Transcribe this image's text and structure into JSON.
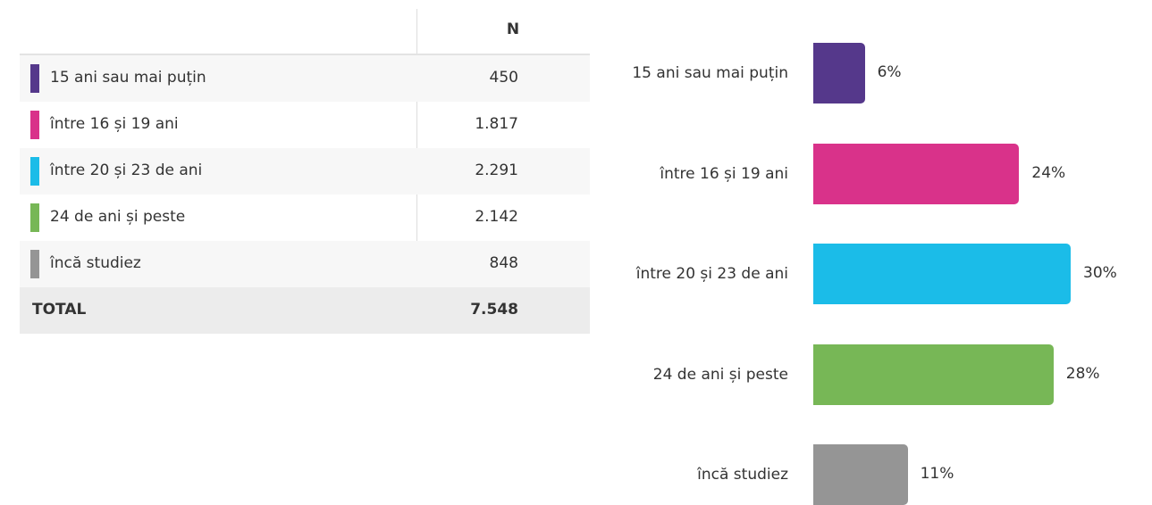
{
  "table": {
    "header": "N",
    "rows": [
      {
        "label": "15 ani sau mai puțin",
        "value": "450",
        "color": "#55388b"
      },
      {
        "label": "între 16 și 19 ani",
        "value": "1.817",
        "color": "#d9328a"
      },
      {
        "label": "între 20 și 23 de ani",
        "value": "2.291",
        "color": "#1bbce8"
      },
      {
        "label": "24 de ani și peste",
        "value": "2.142",
        "color": "#77b756"
      },
      {
        "label": "încă studiez",
        "value": "848",
        "color": "#959595"
      }
    ],
    "total": {
      "label": "TOTAL",
      "value": "7.548"
    }
  },
  "chart_data": {
    "type": "bar",
    "orientation": "horizontal",
    "categories": [
      "15 ani sau mai puțin",
      "între 16 și 19 ani",
      "între 20 și 23 de ani",
      "24 de ani și peste",
      "încă studiez"
    ],
    "values": [
      6,
      24,
      30,
      28,
      11
    ],
    "value_labels": [
      "6%",
      "24%",
      "30%",
      "28%",
      "11%"
    ],
    "colors": [
      "#55388b",
      "#d9328a",
      "#1bbce8",
      "#77b756",
      "#959595"
    ]
  }
}
